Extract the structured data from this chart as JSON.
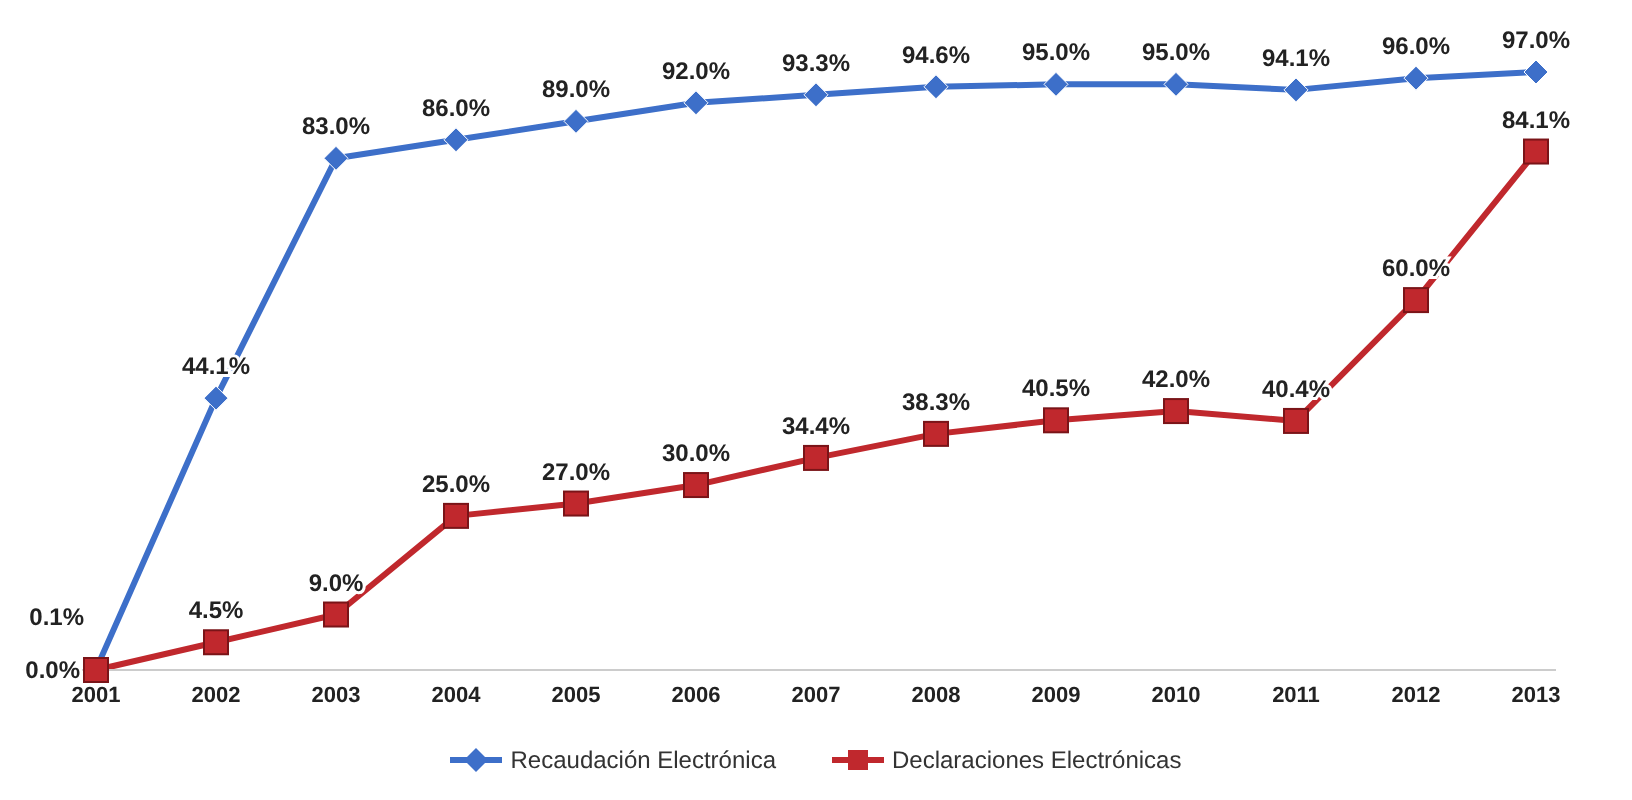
{
  "chart_data": {
    "type": "line",
    "categories": [
      "2001",
      "2002",
      "2003",
      "2004",
      "2005",
      "2006",
      "2007",
      "2008",
      "2009",
      "2010",
      "2011",
      "2012",
      "2013"
    ],
    "series": [
      {
        "name": "Recaudación Electrónica",
        "color": "#3d6fc9",
        "marker": "diamond",
        "values": [
          0.1,
          44.1,
          83.0,
          86.0,
          89.0,
          92.0,
          93.3,
          94.6,
          95.0,
          95.0,
          94.1,
          96.0,
          97.0
        ],
        "value_labels": [
          "0.1%",
          "44.1%",
          "83.0%",
          "86.0%",
          "89.0%",
          "92.0%",
          "93.3%",
          "94.6%",
          "95.0%",
          "95.0%",
          "94.1%",
          "96.0%",
          "97.0%"
        ]
      },
      {
        "name": "Declaraciones Electrónicas",
        "color": "#c0282d",
        "marker": "square",
        "values": [
          0.0,
          4.5,
          9.0,
          25.0,
          27.0,
          30.0,
          34.4,
          38.3,
          40.5,
          42.0,
          40.4,
          60.0,
          84.1
        ],
        "value_labels": [
          "0.0%",
          "4.5%",
          "9.0%",
          "25.0%",
          "27.0%",
          "30.0%",
          "34.4%",
          "38.3%",
          "40.5%",
          "42.0%",
          "40.4%",
          "60.0%",
          "84.1%"
        ]
      }
    ],
    "legend": "bottom",
    "grid": false,
    "line_style": "solid"
  }
}
